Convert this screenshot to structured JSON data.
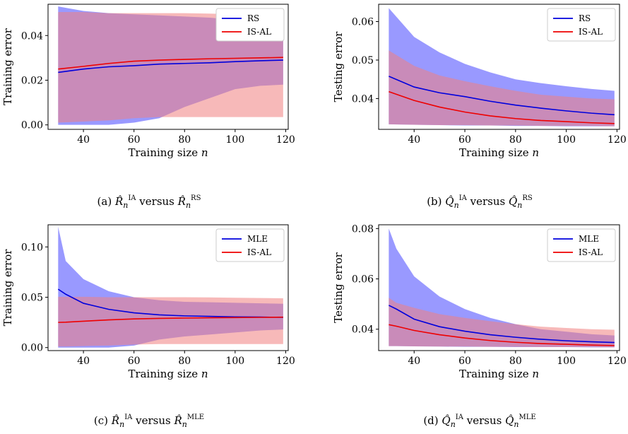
{
  "colors": {
    "rs_line": "#0000dd",
    "rs_band": "#7777ff",
    "isal_line": "#ee0000",
    "isal_band": "#f08080",
    "overlap": "#a0447a"
  },
  "chart_data": [
    {
      "type": "area",
      "panel": "a",
      "caption": "(a) R̂_n^IA versus R̂_n^RS",
      "xlabel": "Training size n",
      "ylabel": "Training error",
      "xlim": [
        26,
        121
      ],
      "ylim": [
        -0.002,
        0.054
      ],
      "xticks": [
        40,
        60,
        80,
        100,
        120
      ],
      "yticks": [
        0.0,
        0.02,
        0.04
      ],
      "ytick_labels": [
        "0.00",
        "0.02",
        "0.04"
      ],
      "legend_position": "top-right",
      "series": [
        {
          "name": "RS",
          "x": [
            30,
            40,
            50,
            60,
            70,
            80,
            90,
            100,
            110,
            119
          ],
          "mean": [
            0.0235,
            0.025,
            0.026,
            0.0265,
            0.0272,
            0.0275,
            0.0278,
            0.0283,
            0.0287,
            0.029
          ],
          "lower": [
            0.0,
            0.0,
            0.0,
            0.001,
            0.003,
            0.008,
            0.012,
            0.016,
            0.0175,
            0.018
          ],
          "upper": [
            0.053,
            0.051,
            0.05,
            0.0495,
            0.049,
            0.0485,
            0.048,
            0.047,
            0.046,
            0.0455
          ]
        },
        {
          "name": "IS-AL",
          "x": [
            30,
            40,
            50,
            60,
            70,
            80,
            90,
            100,
            110,
            119
          ],
          "mean": [
            0.025,
            0.0262,
            0.0275,
            0.0285,
            0.029,
            0.0293,
            0.0296,
            0.0298,
            0.03,
            0.0302
          ],
          "lower": [
            0.001,
            0.0015,
            0.002,
            0.003,
            0.0035,
            0.0035,
            0.0035,
            0.0035,
            0.0035,
            0.0035
          ],
          "upper": [
            0.0505,
            0.0505,
            0.05,
            0.05,
            0.05,
            0.05,
            0.0498,
            0.0495,
            0.0492,
            0.049
          ]
        }
      ]
    },
    {
      "type": "area",
      "panel": "b",
      "caption": "(b) Q̂_n^IA versus Q̂_n^RS",
      "xlabel": "Training size n",
      "ylabel": "Testing error",
      "xlim": [
        26,
        121
      ],
      "ylim": [
        0.032,
        0.0645
      ],
      "xticks": [
        40,
        60,
        80,
        100,
        120
      ],
      "yticks": [
        0.04,
        0.05,
        0.06
      ],
      "ytick_labels": [
        "0.04",
        "0.05",
        "0.06"
      ],
      "legend_position": "top-right",
      "series": [
        {
          "name": "RS",
          "x": [
            30,
            40,
            50,
            60,
            70,
            80,
            90,
            100,
            110,
            119
          ],
          "mean": [
            0.0458,
            0.043,
            0.0415,
            0.0405,
            0.0393,
            0.0383,
            0.0375,
            0.0368,
            0.0362,
            0.0358
          ],
          "lower": [
            0.0333,
            0.0332,
            0.0331,
            0.033,
            0.033,
            0.0329,
            0.0329,
            0.0328,
            0.0328,
            0.0328
          ],
          "upper": [
            0.0635,
            0.056,
            0.052,
            0.049,
            0.0468,
            0.045,
            0.044,
            0.0432,
            0.0425,
            0.042
          ]
        },
        {
          "name": "IS-AL",
          "x": [
            30,
            40,
            50,
            60,
            70,
            80,
            90,
            100,
            110,
            119
          ],
          "mean": [
            0.0418,
            0.0395,
            0.0378,
            0.0365,
            0.0355,
            0.0348,
            0.0343,
            0.034,
            0.0337,
            0.0335
          ],
          "lower": [
            0.0333,
            0.0332,
            0.0331,
            0.0331,
            0.033,
            0.033,
            0.0329,
            0.0329,
            0.0329,
            0.0328
          ],
          "upper": [
            0.0525,
            0.0485,
            0.046,
            0.0445,
            0.0432,
            0.042,
            0.041,
            0.0405,
            0.04,
            0.0398
          ]
        }
      ]
    },
    {
      "type": "area",
      "panel": "c",
      "caption": "(c) R̂_n^IA versus R̂_n^MLE",
      "xlabel": "Training size n",
      "ylabel": "Training error",
      "xlim": [
        26,
        121
      ],
      "ylim": [
        -0.003,
        0.122
      ],
      "xticks": [
        40,
        60,
        80,
        100,
        120
      ],
      "yticks": [
        0.0,
        0.05,
        0.1
      ],
      "ytick_labels": [
        "0.00",
        "0.05",
        "0.10"
      ],
      "legend_position": "top-right",
      "series": [
        {
          "name": "MLE",
          "x": [
            30,
            33,
            40,
            50,
            60,
            70,
            80,
            90,
            100,
            110,
            119
          ],
          "mean": [
            0.058,
            0.053,
            0.044,
            0.038,
            0.0345,
            0.0325,
            0.0315,
            0.031,
            0.0305,
            0.0303,
            0.03
          ],
          "lower": [
            0.0,
            0.0,
            0.0,
            0.0,
            0.002,
            0.008,
            0.011,
            0.013,
            0.015,
            0.017,
            0.018
          ],
          "upper": [
            0.12,
            0.086,
            0.068,
            0.056,
            0.05,
            0.047,
            0.0455,
            0.045,
            0.0445,
            0.044,
            0.0435
          ]
        },
        {
          "name": "IS-AL",
          "x": [
            30,
            33,
            40,
            50,
            60,
            70,
            80,
            90,
            100,
            110,
            119
          ],
          "mean": [
            0.025,
            0.0252,
            0.0262,
            0.0275,
            0.0285,
            0.029,
            0.0293,
            0.0296,
            0.0298,
            0.03,
            0.0302
          ],
          "lower": [
            0.001,
            0.001,
            0.0015,
            0.002,
            0.003,
            0.0035,
            0.0035,
            0.0035,
            0.0035,
            0.0035,
            0.0035
          ],
          "upper": [
            0.0505,
            0.0505,
            0.0505,
            0.05,
            0.05,
            0.05,
            0.05,
            0.0498,
            0.0495,
            0.0492,
            0.049
          ]
        }
      ]
    },
    {
      "type": "area",
      "panel": "d",
      "caption": "(d) Q̂_n^IA versus Q̂_n^MLE",
      "xlabel": "Training size n",
      "ylabel": "Testing error",
      "xlim": [
        26,
        121
      ],
      "ylim": [
        0.0315,
        0.0815
      ],
      "xticks": [
        40,
        60,
        80,
        100,
        120
      ],
      "yticks": [
        0.04,
        0.06,
        0.08
      ],
      "ytick_labels": [
        "0.04",
        "0.06",
        "0.08"
      ],
      "legend_position": "top-right",
      "series": [
        {
          "name": "MLE",
          "x": [
            30,
            33,
            40,
            50,
            60,
            70,
            80,
            90,
            100,
            110,
            119
          ],
          "mean": [
            0.0495,
            0.048,
            0.044,
            0.041,
            0.0392,
            0.0378,
            0.0368,
            0.036,
            0.0354,
            0.035,
            0.0347
          ],
          "lower": [
            0.0333,
            0.0333,
            0.0332,
            0.0331,
            0.033,
            0.033,
            0.0329,
            0.0329,
            0.0329,
            0.0328,
            0.0328
          ],
          "upper": [
            0.08,
            0.072,
            0.061,
            0.053,
            0.048,
            0.0445,
            0.042,
            0.04,
            0.039,
            0.038,
            0.0375
          ]
        },
        {
          "name": "IS-AL",
          "x": [
            30,
            33,
            40,
            50,
            60,
            70,
            80,
            90,
            100,
            110,
            119
          ],
          "mean": [
            0.0418,
            0.0412,
            0.0395,
            0.0378,
            0.0365,
            0.0355,
            0.0348,
            0.0343,
            0.034,
            0.0337,
            0.0335
          ],
          "lower": [
            0.0333,
            0.0333,
            0.0332,
            0.0331,
            0.0331,
            0.033,
            0.033,
            0.0329,
            0.0329,
            0.0329,
            0.0328
          ],
          "upper": [
            0.0525,
            0.0505,
            0.0485,
            0.046,
            0.0445,
            0.0432,
            0.042,
            0.041,
            0.0405,
            0.04,
            0.0398
          ]
        }
      ]
    }
  ]
}
